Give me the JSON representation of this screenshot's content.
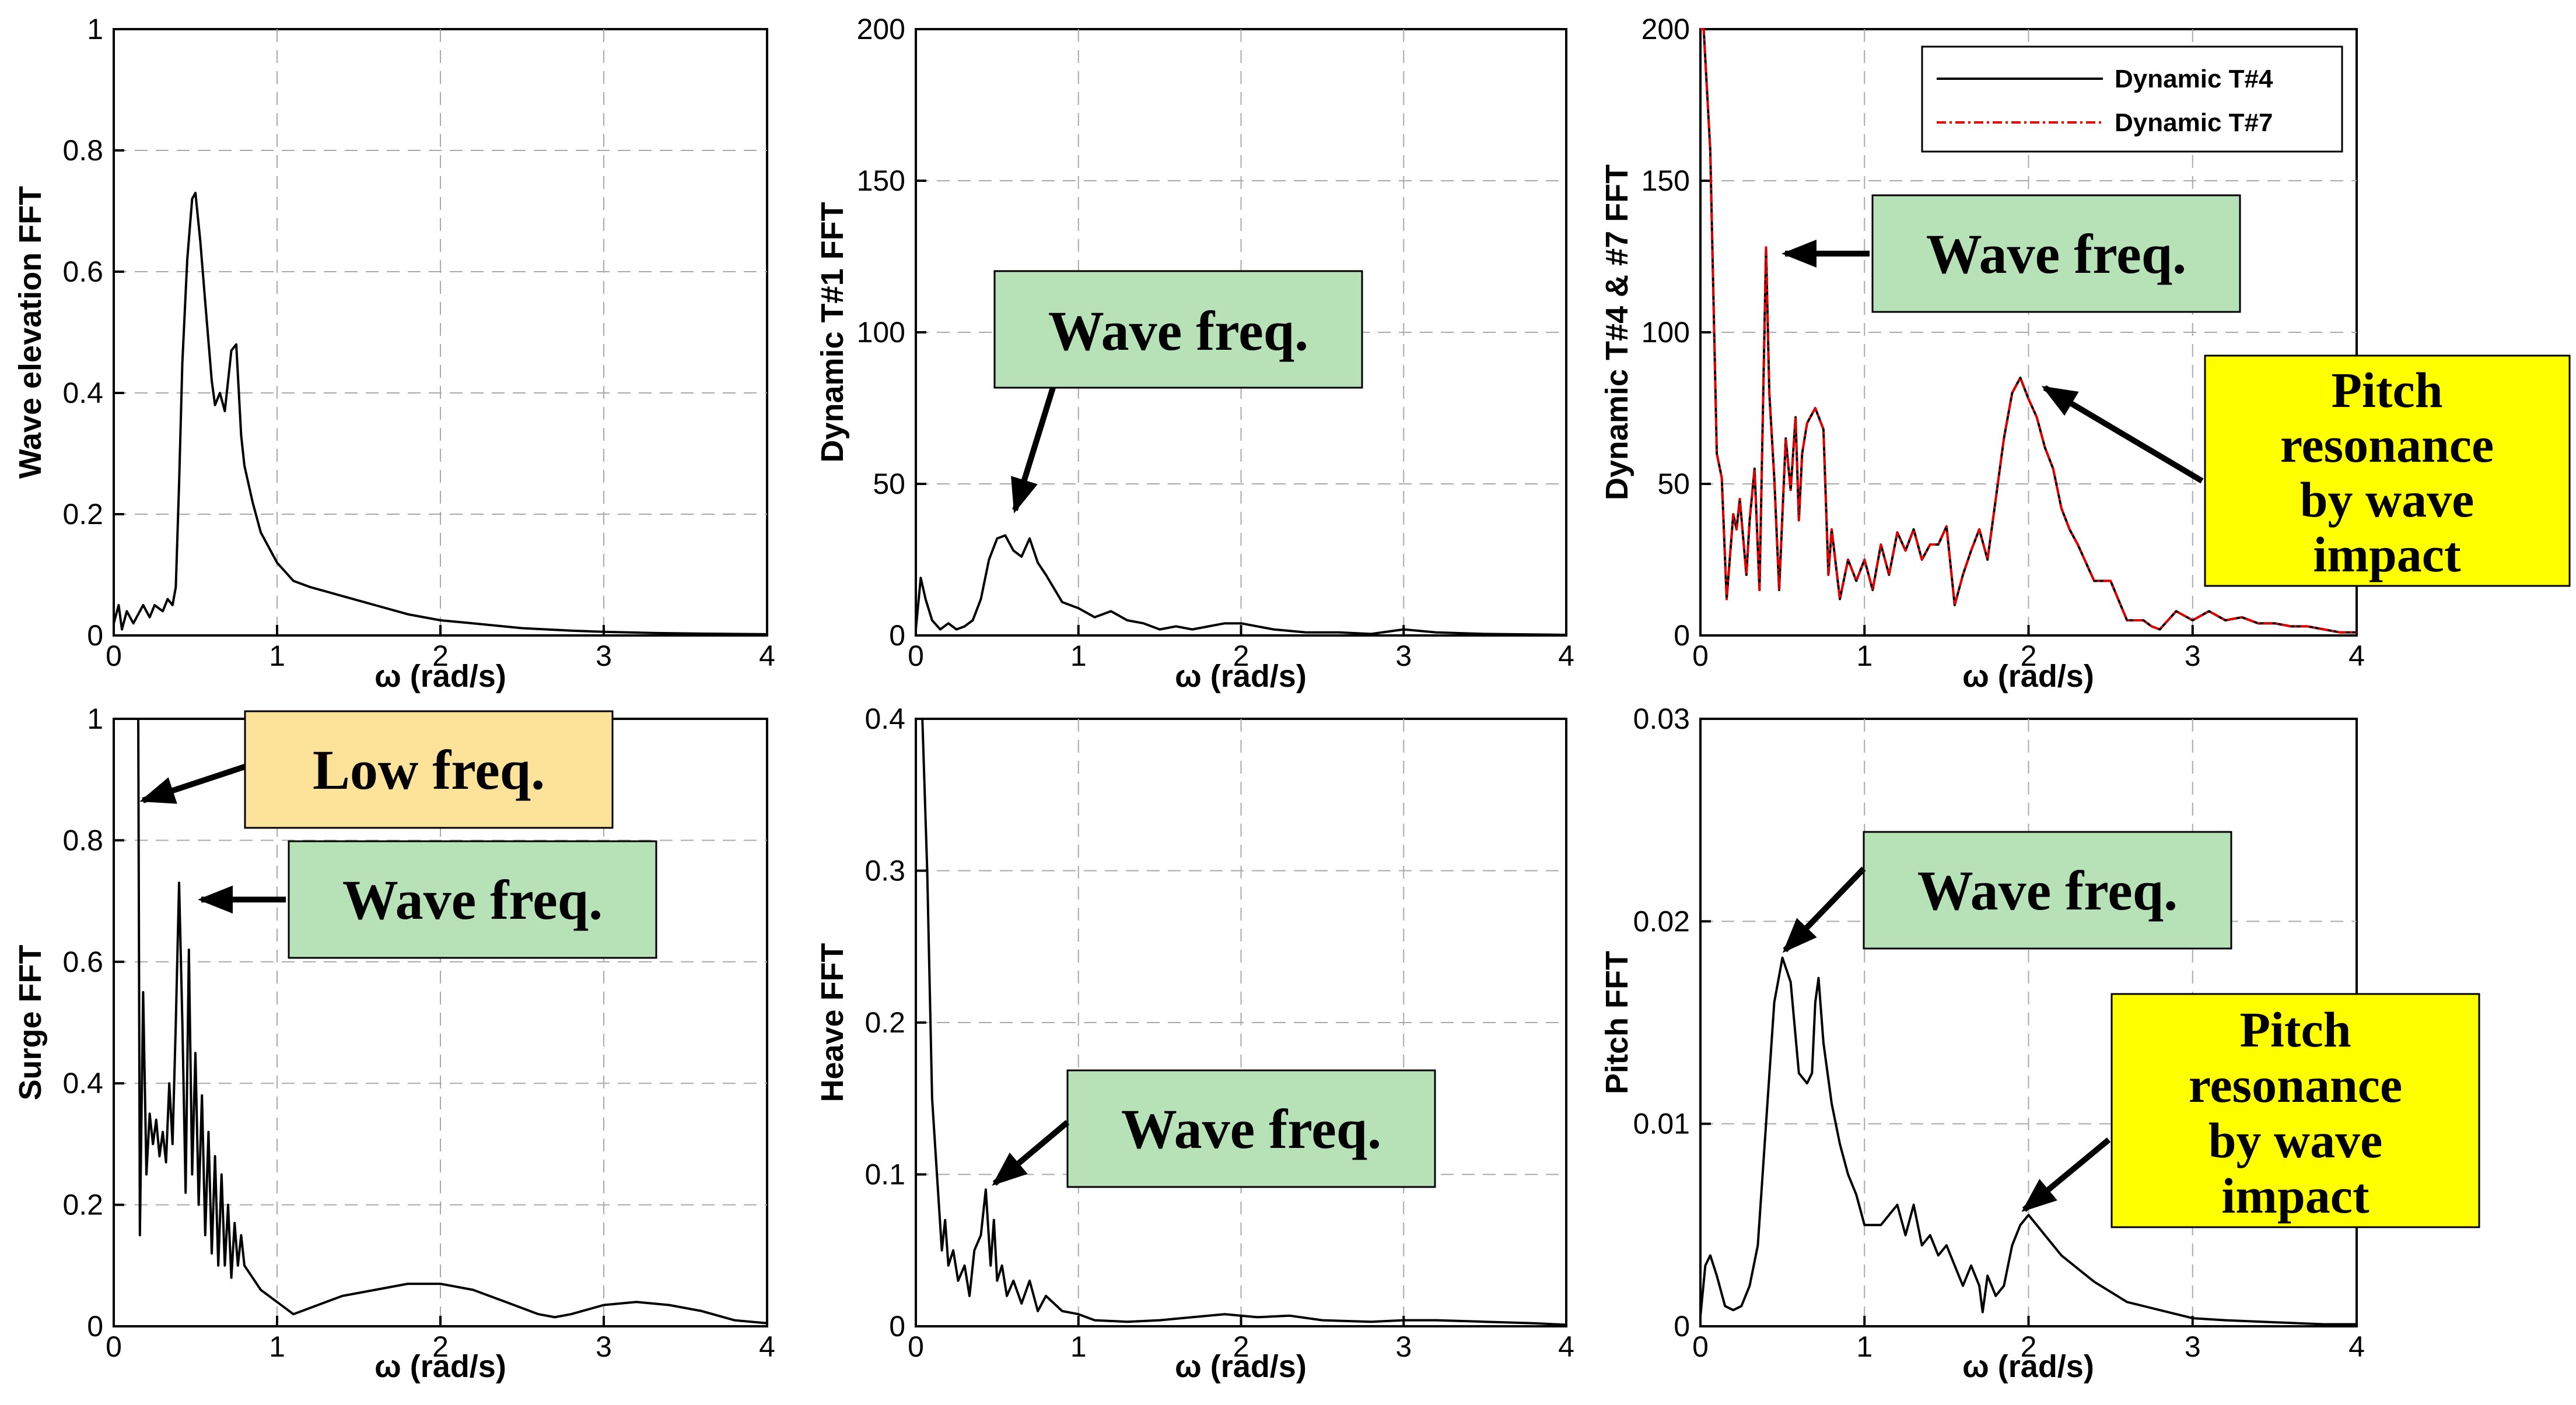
{
  "colors": {
    "black": "#000000",
    "red": "#e00000",
    "green": "#b7e1b7",
    "orange": "#fde29a",
    "yellow": "#ffff00",
    "grid": "#a9a9a9"
  },
  "chart_data": [
    {
      "id": "wave",
      "type": "line",
      "xlabel": "ω (rad/s)",
      "ylabel": "Wave elevation FFT",
      "xlim": [
        0,
        4
      ],
      "ylim": [
        0,
        1
      ],
      "xticks": [
        0,
        1,
        2,
        3,
        4
      ],
      "xtick_labels": [
        "0",
        "1",
        "2",
        "3",
        "4"
      ],
      "yticks": [
        0,
        0.2,
        0.4,
        0.6,
        0.8,
        1
      ],
      "ytick_labels": [
        "0",
        "0.2",
        "0.4",
        "0.6",
        "0.8",
        "1"
      ],
      "series": [
        {
          "name": "Wave elevation",
          "color": "#000000",
          "x": [
            0,
            0.03,
            0.05,
            0.08,
            0.12,
            0.18,
            0.22,
            0.25,
            0.3,
            0.33,
            0.36,
            0.38,
            0.4,
            0.42,
            0.45,
            0.48,
            0.5,
            0.53,
            0.56,
            0.6,
            0.62,
            0.65,
            0.68,
            0.72,
            0.75,
            0.78,
            0.8,
            0.85,
            0.9,
            1.0,
            1.1,
            1.2,
            1.4,
            1.6,
            1.8,
            2.0,
            2.2,
            2.5,
            2.8,
            3.0,
            3.3,
            3.6,
            4.0
          ],
          "y": [
            0.02,
            0.05,
            0.01,
            0.04,
            0.02,
            0.05,
            0.03,
            0.05,
            0.04,
            0.06,
            0.05,
            0.08,
            0.25,
            0.45,
            0.62,
            0.72,
            0.73,
            0.65,
            0.55,
            0.42,
            0.38,
            0.4,
            0.37,
            0.47,
            0.48,
            0.33,
            0.28,
            0.22,
            0.17,
            0.12,
            0.09,
            0.08,
            0.065,
            0.05,
            0.035,
            0.025,
            0.02,
            0.012,
            0.008,
            0.006,
            0.004,
            0.003,
            0.002
          ]
        }
      ],
      "callouts": []
    },
    {
      "id": "t1",
      "type": "line",
      "xlabel": "ω (rad/s)",
      "ylabel": "Dynamic T#1 FFT",
      "xlim": [
        0,
        4
      ],
      "ylim": [
        0,
        200
      ],
      "xticks": [
        0,
        1,
        2,
        3,
        4
      ],
      "xtick_labels": [
        "0",
        "1",
        "2",
        "3",
        "4"
      ],
      "yticks": [
        0,
        50,
        100,
        150,
        200
      ],
      "ytick_labels": [
        "0",
        "50",
        "100",
        "150",
        "200"
      ],
      "series": [
        {
          "name": "Dynamic T#1",
          "color": "#000000",
          "x": [
            0,
            0.03,
            0.06,
            0.1,
            0.15,
            0.2,
            0.25,
            0.3,
            0.35,
            0.4,
            0.45,
            0.5,
            0.55,
            0.6,
            0.65,
            0.7,
            0.75,
            0.8,
            0.9,
            1.0,
            1.1,
            1.2,
            1.3,
            1.4,
            1.5,
            1.6,
            1.7,
            1.8,
            1.9,
            2.0,
            2.2,
            2.4,
            2.6,
            2.8,
            3.0,
            3.2,
            3.5,
            4.0
          ],
          "y": [
            2,
            19,
            12,
            5,
            2,
            4,
            2,
            3,
            5,
            12,
            25,
            32,
            33,
            28,
            26,
            32,
            24,
            20,
            11,
            9,
            6,
            8,
            5,
            4,
            2,
            3,
            2,
            3,
            4,
            4,
            2,
            1,
            1,
            0.5,
            2,
            1,
            0.5,
            0.2
          ]
        }
      ],
      "callouts": [
        {
          "text": [
            "Wave freq."
          ],
          "style": "green"
        }
      ]
    },
    {
      "id": "t47",
      "type": "line",
      "xlabel": "ω (rad/s)",
      "ylabel": "Dynamic T#4 & #7 FFT",
      "xlim": [
        0,
        4
      ],
      "ylim": [
        0,
        200
      ],
      "xticks": [
        0,
        1,
        2,
        3,
        4
      ],
      "xtick_labels": [
        "0",
        "1",
        "2",
        "3",
        "4"
      ],
      "yticks": [
        0,
        50,
        100,
        150,
        200
      ],
      "ytick_labels": [
        "0",
        "50",
        "100",
        "150",
        "200"
      ],
      "legend": {
        "location": "top-right",
        "entries": [
          "Dynamic T#4",
          "Dynamic T#7"
        ]
      },
      "series": [
        {
          "name": "Dynamic T#4",
          "color": "#000000",
          "dash": "",
          "x": [
            0,
            0.02,
            0.06,
            0.1,
            0.13,
            0.16,
            0.2,
            0.22,
            0.24,
            0.28,
            0.3,
            0.33,
            0.36,
            0.4,
            0.42,
            0.45,
            0.48,
            0.5,
            0.52,
            0.55,
            0.58,
            0.6,
            0.62,
            0.65,
            0.7,
            0.75,
            0.78,
            0.8,
            0.85,
            0.9,
            0.95,
            1.0,
            1.05,
            1.1,
            1.15,
            1.2,
            1.25,
            1.3,
            1.35,
            1.4,
            1.45,
            1.5,
            1.55,
            1.6,
            1.65,
            1.7,
            1.75,
            1.8,
            1.85,
            1.9,
            1.95,
            2.0,
            2.05,
            2.1,
            2.15,
            2.2,
            2.25,
            2.3,
            2.4,
            2.5,
            2.6,
            2.7,
            2.75,
            2.8,
            2.9,
            3.0,
            3.1,
            3.2,
            3.3,
            3.4,
            3.5,
            3.6,
            3.7,
            3.8,
            3.9,
            4.0
          ],
          "y": [
            200,
            200,
            160,
            60,
            52,
            12,
            40,
            35,
            45,
            20,
            38,
            55,
            15,
            128,
            80,
            52,
            15,
            40,
            65,
            48,
            72,
            38,
            60,
            70,
            75,
            68,
            20,
            35,
            12,
            25,
            18,
            25,
            15,
            30,
            20,
            34,
            28,
            35,
            25,
            30,
            30,
            36,
            10,
            20,
            28,
            35,
            25,
            45,
            65,
            80,
            85,
            78,
            72,
            62,
            55,
            42,
            35,
            30,
            18,
            18,
            5,
            5,
            3,
            2,
            8,
            5,
            8,
            5,
            6,
            4,
            4,
            3,
            3,
            2,
            1,
            1
          ]
        },
        {
          "name": "Dynamic T#7",
          "color": "#e00000",
          "dash": "16,6,4,6",
          "x": [
            0,
            0.02,
            0.06,
            0.1,
            0.13,
            0.16,
            0.2,
            0.22,
            0.24,
            0.28,
            0.3,
            0.33,
            0.36,
            0.4,
            0.42,
            0.45,
            0.48,
            0.5,
            0.52,
            0.55,
            0.58,
            0.6,
            0.62,
            0.65,
            0.7,
            0.75,
            0.78,
            0.8,
            0.85,
            0.9,
            0.95,
            1.0,
            1.05,
            1.1,
            1.15,
            1.2,
            1.25,
            1.3,
            1.35,
            1.4,
            1.45,
            1.5,
            1.55,
            1.6,
            1.65,
            1.7,
            1.75,
            1.8,
            1.85,
            1.9,
            1.95,
            2.0,
            2.05,
            2.1,
            2.15,
            2.2,
            2.25,
            2.3,
            2.4,
            2.5,
            2.6,
            2.7,
            2.75,
            2.8,
            2.9,
            3.0,
            3.1,
            3.2,
            3.3,
            3.4,
            3.5,
            3.6,
            3.7,
            3.8,
            3.9,
            4.0
          ],
          "y": [
            200,
            200,
            160,
            60,
            52,
            12,
            40,
            35,
            45,
            20,
            38,
            55,
            15,
            128,
            80,
            52,
            15,
            40,
            65,
            48,
            72,
            38,
            60,
            70,
            75,
            68,
            20,
            35,
            12,
            25,
            18,
            25,
            15,
            30,
            20,
            34,
            28,
            35,
            25,
            30,
            30,
            36,
            10,
            20,
            28,
            35,
            25,
            45,
            65,
            80,
            85,
            78,
            72,
            62,
            55,
            42,
            35,
            30,
            18,
            18,
            5,
            5,
            3,
            2,
            8,
            5,
            8,
            5,
            6,
            4,
            4,
            3,
            3,
            2,
            1,
            1
          ]
        }
      ],
      "callouts": [
        {
          "text": [
            "Wave freq."
          ],
          "style": "green"
        },
        {
          "text": [
            "Pitch",
            "resonance",
            "by wave",
            "impact"
          ],
          "style": "yellow"
        }
      ]
    },
    {
      "id": "surge",
      "type": "line",
      "xlabel": "ω (rad/s)",
      "ylabel": "Surge FFT",
      "xlim": [
        0,
        4
      ],
      "ylim": [
        0,
        1
      ],
      "xticks": [
        0,
        1,
        2,
        3,
        4
      ],
      "xtick_labels": [
        "0",
        "1",
        "2",
        "3",
        "4"
      ],
      "yticks": [
        0,
        0.2,
        0.4,
        0.6,
        0.8,
        1
      ],
      "ytick_labels": [
        "0",
        "0.2",
        "0.4",
        "0.6",
        "0.8",
        "1"
      ],
      "series": [
        {
          "name": "Surge",
          "color": "#000000",
          "x": [
            0.15,
            0.16,
            0.18,
            0.2,
            0.22,
            0.24,
            0.26,
            0.28,
            0.3,
            0.32,
            0.34,
            0.36,
            0.38,
            0.4,
            0.42,
            0.44,
            0.46,
            0.48,
            0.5,
            0.52,
            0.54,
            0.56,
            0.58,
            0.6,
            0.62,
            0.64,
            0.66,
            0.68,
            0.7,
            0.72,
            0.74,
            0.76,
            0.78,
            0.8,
            0.85,
            0.9,
            1.0,
            1.1,
            1.2,
            1.3,
            1.4,
            1.6,
            1.8,
            2.0,
            2.2,
            2.4,
            2.6,
            2.7,
            2.8,
            3.0,
            3.2,
            3.4,
            3.6,
            3.8,
            4.0
          ],
          "y": [
            1.0,
            0.15,
            0.55,
            0.25,
            0.35,
            0.3,
            0.34,
            0.28,
            0.32,
            0.27,
            0.4,
            0.3,
            0.5,
            0.73,
            0.5,
            0.22,
            0.62,
            0.25,
            0.45,
            0.2,
            0.38,
            0.15,
            0.32,
            0.12,
            0.28,
            0.1,
            0.25,
            0.1,
            0.2,
            0.08,
            0.17,
            0.1,
            0.15,
            0.1,
            0.08,
            0.06,
            0.04,
            0.02,
            0.03,
            0.04,
            0.05,
            0.06,
            0.07,
            0.07,
            0.06,
            0.04,
            0.02,
            0.015,
            0.02,
            0.035,
            0.04,
            0.035,
            0.025,
            0.01,
            0.005
          ]
        }
      ],
      "callouts": [
        {
          "text": [
            "Low freq."
          ],
          "style": "orange"
        },
        {
          "text": [
            "Wave freq."
          ],
          "style": "green"
        }
      ]
    },
    {
      "id": "heave",
      "type": "line",
      "xlabel": "ω (rad/s)",
      "ylabel": "Heave FFT",
      "xlim": [
        0,
        4
      ],
      "ylim": [
        0,
        0.4
      ],
      "xticks": [
        0,
        1,
        2,
        3,
        4
      ],
      "xtick_labels": [
        "0",
        "1",
        "2",
        "3",
        "4"
      ],
      "yticks": [
        0,
        0.1,
        0.2,
        0.3,
        0.4
      ],
      "ytick_labels": [
        "0",
        "0.1",
        "0.2",
        "0.3",
        "0.4"
      ],
      "series": [
        {
          "name": "Heave",
          "color": "#000000",
          "x": [
            0.01,
            0.04,
            0.07,
            0.1,
            0.13,
            0.16,
            0.18,
            0.2,
            0.23,
            0.26,
            0.3,
            0.33,
            0.36,
            0.4,
            0.43,
            0.46,
            0.48,
            0.5,
            0.53,
            0.56,
            0.6,
            0.65,
            0.7,
            0.75,
            0.8,
            0.9,
            1.0,
            1.1,
            1.3,
            1.5,
            1.7,
            1.9,
            2.1,
            2.3,
            2.5,
            2.8,
            3.0,
            3.2,
            3.5,
            3.8,
            4.0
          ],
          "y": [
            0.4,
            0.4,
            0.3,
            0.15,
            0.1,
            0.05,
            0.07,
            0.04,
            0.05,
            0.03,
            0.04,
            0.02,
            0.05,
            0.06,
            0.09,
            0.04,
            0.07,
            0.03,
            0.04,
            0.02,
            0.03,
            0.015,
            0.03,
            0.01,
            0.02,
            0.01,
            0.008,
            0.004,
            0.003,
            0.004,
            0.006,
            0.008,
            0.006,
            0.007,
            0.004,
            0.003,
            0.004,
            0.004,
            0.003,
            0.002,
            0.001
          ]
        }
      ],
      "callouts": [
        {
          "text": [
            "Wave freq."
          ],
          "style": "green"
        }
      ]
    },
    {
      "id": "pitch",
      "type": "line",
      "xlabel": "ω (rad/s)",
      "ylabel": "Pitch FFT",
      "xlim": [
        0,
        4
      ],
      "ylim": [
        0,
        0.03
      ],
      "xticks": [
        0,
        1,
        2,
        3,
        4
      ],
      "xtick_labels": [
        "0",
        "1",
        "2",
        "3",
        "4"
      ],
      "yticks": [
        0,
        0.01,
        0.02,
        0.03
      ],
      "ytick_labels": [
        "0",
        "0.01",
        "0.02",
        "0.03"
      ],
      "series": [
        {
          "name": "Pitch",
          "color": "#000000",
          "x": [
            0,
            0.03,
            0.06,
            0.1,
            0.15,
            0.2,
            0.25,
            0.3,
            0.35,
            0.4,
            0.45,
            0.5,
            0.55,
            0.6,
            0.65,
            0.68,
            0.7,
            0.72,
            0.75,
            0.8,
            0.85,
            0.9,
            0.95,
            1.0,
            1.1,
            1.2,
            1.25,
            1.3,
            1.35,
            1.4,
            1.45,
            1.5,
            1.55,
            1.6,
            1.65,
            1.7,
            1.72,
            1.75,
            1.8,
            1.85,
            1.9,
            1.95,
            2.0,
            2.05,
            2.1,
            2.2,
            2.4,
            2.6,
            2.8,
            3.0,
            3.2,
            3.5,
            3.8,
            4.0
          ],
          "y": [
            0.0005,
            0.003,
            0.0035,
            0.0025,
            0.001,
            0.0008,
            0.001,
            0.002,
            0.004,
            0.01,
            0.016,
            0.0182,
            0.017,
            0.0125,
            0.012,
            0.0125,
            0.016,
            0.0172,
            0.014,
            0.011,
            0.009,
            0.0075,
            0.0065,
            0.005,
            0.005,
            0.006,
            0.0045,
            0.006,
            0.004,
            0.0045,
            0.0035,
            0.004,
            0.003,
            0.002,
            0.003,
            0.002,
            0.0007,
            0.0025,
            0.0015,
            0.002,
            0.004,
            0.005,
            0.0055,
            0.005,
            0.0045,
            0.0035,
            0.0022,
            0.0012,
            0.0008,
            0.0004,
            0.0003,
            0.0002,
            0.0001,
            0.0001
          ]
        }
      ],
      "callouts": [
        {
          "text": [
            "Wave freq."
          ],
          "style": "green"
        },
        {
          "text": [
            "Pitch",
            "resonance",
            "by wave",
            "impact"
          ],
          "style": "yellow"
        }
      ]
    }
  ]
}
